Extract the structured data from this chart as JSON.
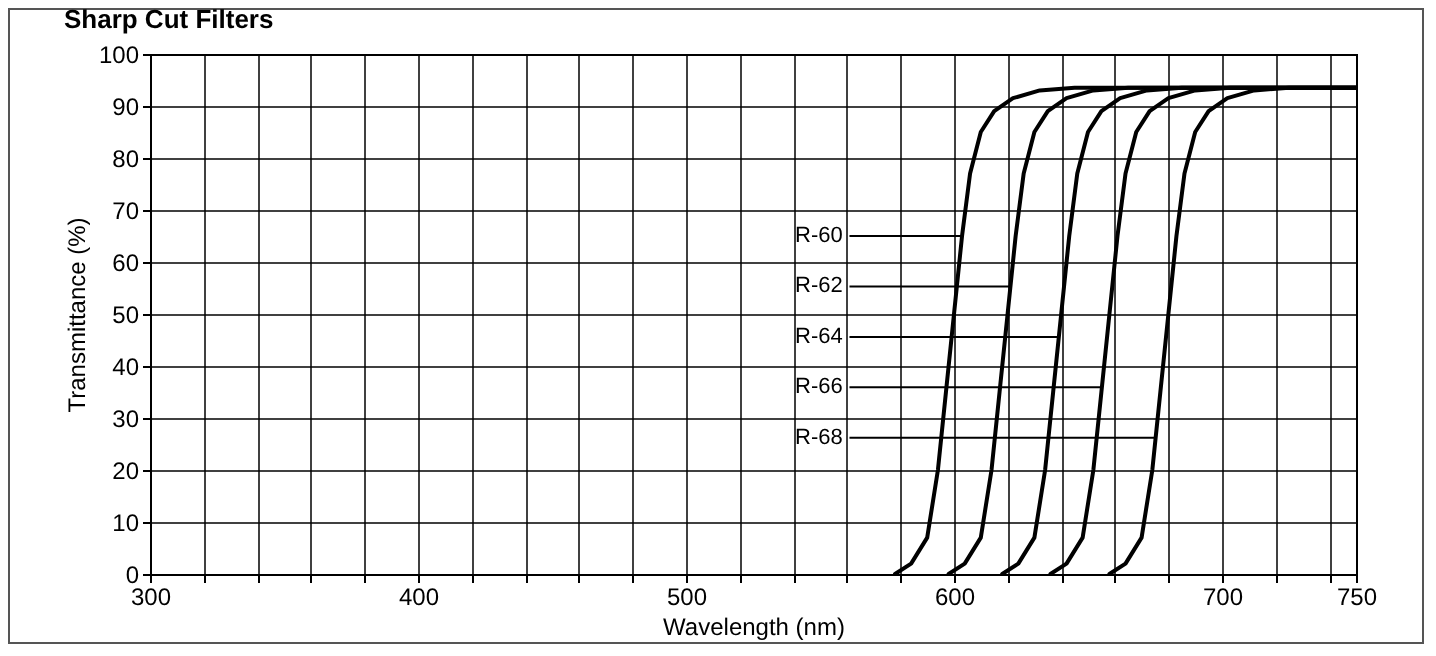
{
  "chart_data": {
    "type": "line",
    "title": "Sharp Cut Filters",
    "xlabel": "Wavelength (nm)",
    "ylabel": "Transmittance (%)",
    "xlim": [
      300,
      750
    ],
    "xticks": [
      300,
      {
        "value": 320,
        "label": null
      },
      {
        "value": 340,
        "label": null
      },
      {
        "value": 360,
        "label": null
      },
      {
        "value": 380,
        "label": null
      },
      400,
      {
        "value": 420,
        "label": null
      },
      {
        "value": 440,
        "label": null
      },
      {
        "value": 460,
        "label": null
      },
      {
        "value": 480,
        "label": null
      },
      500,
      {
        "value": 520,
        "label": null
      },
      {
        "value": 540,
        "label": null
      },
      {
        "value": 560,
        "label": null
      },
      {
        "value": 580,
        "label": null
      },
      600,
      {
        "value": 620,
        "label": null
      },
      {
        "value": 640,
        "label": null
      },
      {
        "value": 660,
        "label": null
      },
      {
        "value": 680,
        "label": null
      },
      700,
      {
        "value": 720,
        "label": null
      },
      {
        "value": 740,
        "label": null
      },
      750
    ],
    "ylim": [
      0,
      100
    ],
    "yticks": [
      0,
      10,
      20,
      30,
      40,
      50,
      60,
      70,
      80,
      90,
      100
    ],
    "grid": true,
    "legend": false,
    "marker": "none",
    "line_style": "solid",
    "series": [
      {
        "name": "R-60",
        "color": "#000000",
        "x": [
          578,
          584,
          590,
          594,
          597,
          600,
          603,
          606,
          610,
          615,
          622,
          632,
          645,
          750
        ],
        "values": [
          0,
          2,
          7,
          20,
          35,
          50,
          65,
          77,
          85,
          89,
          91.5,
          93,
          93.5,
          93.5
        ]
      },
      {
        "name": "R-62",
        "color": "#000000",
        "x": [
          598,
          604,
          610,
          614,
          617,
          620,
          623,
          626,
          630,
          635,
          642,
          652,
          665,
          750
        ],
        "values": [
          0,
          2,
          7,
          20,
          35,
          50,
          65,
          77,
          85,
          89,
          91.5,
          93,
          93.5,
          93.5
        ]
      },
      {
        "name": "R-64",
        "color": "#000000",
        "x": [
          618,
          624,
          630,
          634,
          637,
          640,
          643,
          646,
          650,
          655,
          662,
          672,
          685,
          750
        ],
        "values": [
          0,
          2,
          7,
          20,
          35,
          50,
          65,
          77,
          85,
          89,
          91.5,
          93,
          93.5,
          93.5
        ]
      },
      {
        "name": "R-66",
        "color": "#000000",
        "x": [
          636,
          642,
          648,
          652,
          655,
          658,
          661,
          664,
          668,
          673,
          680,
          690,
          703,
          750
        ],
        "values": [
          0,
          2,
          7,
          20,
          35,
          50,
          65,
          77,
          85,
          89,
          91.5,
          93,
          93.5,
          93.5
        ]
      },
      {
        "name": "R-68",
        "color": "#000000",
        "x": [
          658,
          664,
          670,
          674,
          677,
          680,
          683,
          686,
          690,
          695,
          702,
          712,
          725,
          750
        ],
        "values": [
          0,
          2,
          7,
          20,
          35,
          50,
          65,
          77,
          85,
          89,
          91.5,
          93,
          93.5,
          93.5
        ]
      }
    ]
  }
}
